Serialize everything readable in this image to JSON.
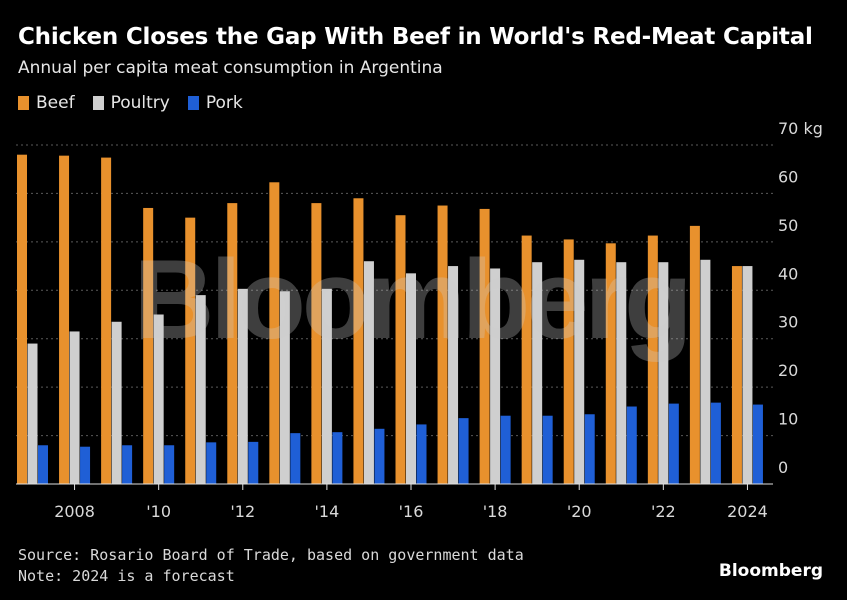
{
  "header": {
    "title": "Chicken Closes the Gap With Beef in World's Red-Meat Capital",
    "subtitle": "Annual per capita meat consumption in Argentina"
  },
  "legend": [
    {
      "label": "Beef",
      "color": "#E8912D"
    },
    {
      "label": "Poultry",
      "color": "#CFCFCF"
    },
    {
      "label": "Pork",
      "color": "#1F5FD6"
    }
  ],
  "footer": {
    "source": "Source: Rosario Board of Trade, based on government data",
    "note": "Note: 2024 is a forecast",
    "brand": "Bloomberg"
  },
  "watermark": "Bloomberg",
  "chart_data": {
    "type": "bar",
    "title": "Chicken Closes the Gap With Beef in World's Red-Meat Capital",
    "ylabel": "kg",
    "ylim": [
      0,
      70
    ],
    "y_ticks": [
      0,
      10,
      20,
      30,
      40,
      50,
      60,
      70
    ],
    "y_tick_labels": [
      "0",
      "10",
      "20",
      "30",
      "40",
      "50",
      "60",
      "70 kg"
    ],
    "categories": [
      2007,
      2008,
      2009,
      2010,
      2011,
      2012,
      2013,
      2014,
      2015,
      2016,
      2017,
      2018,
      2019,
      2020,
      2021,
      2022,
      2023,
      2024
    ],
    "x_tick_labels": [
      {
        "year": 2008,
        "label": "2008"
      },
      {
        "year": 2010,
        "label": "'10"
      },
      {
        "year": 2012,
        "label": "'12"
      },
      {
        "year": 2014,
        "label": "'14"
      },
      {
        "year": 2016,
        "label": "'16"
      },
      {
        "year": 2018,
        "label": "'18"
      },
      {
        "year": 2020,
        "label": "'20"
      },
      {
        "year": 2022,
        "label": "'22"
      },
      {
        "year": 2024,
        "label": "2024"
      }
    ],
    "series": [
      {
        "name": "Beef",
        "color": "#E8912D",
        "values": [
          68.0,
          67.8,
          67.4,
          57.0,
          55.0,
          58.0,
          62.3,
          58.0,
          59.0,
          55.5,
          57.5,
          56.8,
          51.3,
          50.5,
          49.7,
          51.3,
          53.3,
          45.0
        ]
      },
      {
        "name": "Poultry",
        "color": "#CFCFCF",
        "values": [
          29.0,
          31.5,
          33.5,
          35.0,
          39.0,
          40.3,
          39.8,
          40.3,
          46.0,
          43.5,
          45.0,
          44.5,
          45.8,
          46.3,
          45.8,
          45.8,
          46.3,
          45.0
        ]
      },
      {
        "name": "Pork",
        "color": "#1F5FD6",
        "values": [
          8.0,
          7.7,
          8.0,
          8.0,
          8.6,
          8.7,
          10.5,
          10.7,
          11.4,
          12.3,
          13.6,
          14.1,
          14.1,
          14.4,
          16.0,
          16.6,
          16.8,
          16.4
        ]
      }
    ]
  }
}
